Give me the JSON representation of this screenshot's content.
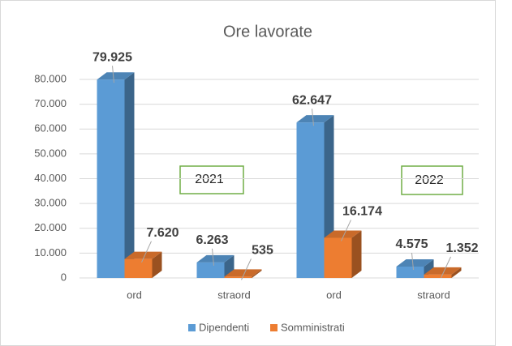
{
  "chart_data": {
    "type": "bar",
    "title": "Ore lavorate",
    "categories": [
      "ord",
      "straord",
      "ord",
      "straord"
    ],
    "series": [
      {
        "name": "Dipendenti",
        "color": "#5b9bd5",
        "values": [
          79925,
          6263,
          62647,
          4575
        ],
        "value_labels": [
          "79.925",
          "6.263",
          "62.647",
          "4.575"
        ]
      },
      {
        "name": "Somministrati",
        "color": "#ed7d31",
        "values": [
          7620,
          535,
          16174,
          1352
        ],
        "value_labels": [
          "7.620",
          "535",
          "16.174",
          "1.352"
        ]
      }
    ],
    "ylim": [
      0,
      80000
    ],
    "yticks": [
      0,
      {
        "value": 10000,
        "label": "10.000"
      },
      {
        "value": 20000,
        "label": "20.000"
      },
      {
        "value": 30000,
        "label": "30.000"
      },
      {
        "value": 40000,
        "label": "40.000"
      },
      {
        "value": 50000,
        "label": "50.000"
      },
      {
        "value": 60000,
        "label": "60.000"
      },
      {
        "value": 70000,
        "label": "70.000"
      },
      {
        "value": 80000,
        "label": "80.000"
      }
    ],
    "grid": true,
    "legend": "bottom",
    "annotations": [
      "2021",
      "2022"
    ]
  }
}
